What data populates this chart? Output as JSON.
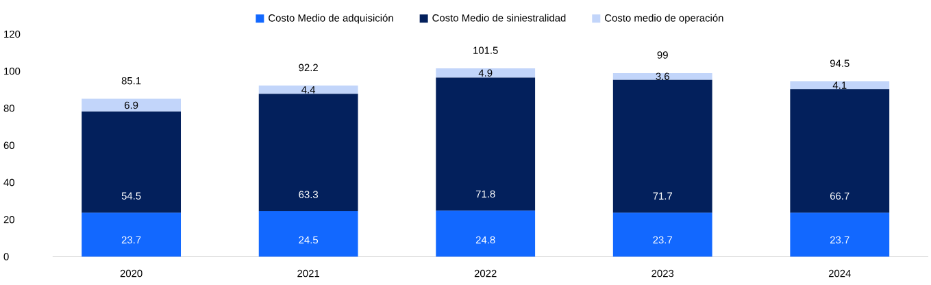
{
  "chart_data": {
    "type": "bar",
    "stacked": true,
    "categories": [
      "2020",
      "2021",
      "2022",
      "2023",
      "2024"
    ],
    "series": [
      {
        "name": "Costo Medio de adquisición",
        "color": "#1268ff",
        "values": [
          23.7,
          24.5,
          24.8,
          23.7,
          23.7
        ]
      },
      {
        "name": "Costo Medio de siniestralidad",
        "color": "#03205c",
        "values": [
          54.5,
          63.3,
          71.8,
          71.7,
          66.7
        ]
      },
      {
        "name": "Costo medio de operación",
        "color": "#c2d5fa",
        "values": [
          6.9,
          4.4,
          4.9,
          3.6,
          4.1
        ]
      }
    ],
    "totals": [
      "85.1",
      "92.2",
      "101.5",
      "99",
      "94.5"
    ],
    "data_labels": true,
    "ylim": [
      0,
      120
    ],
    "yticks": [
      0,
      20,
      40,
      60,
      80,
      100,
      120
    ],
    "grid": false,
    "legend": "top"
  }
}
